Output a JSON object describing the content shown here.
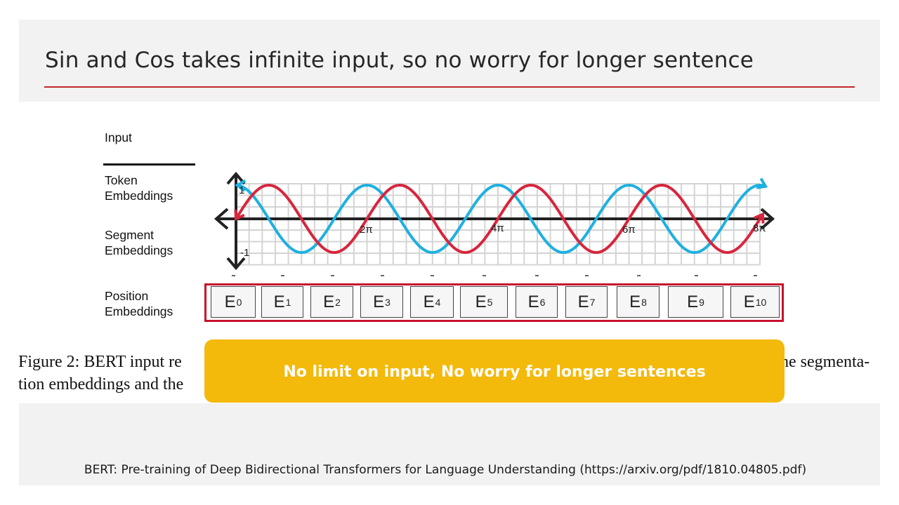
{
  "slide": {
    "title": "Sin and Cos takes infinite input, so no worry for longer sentence"
  },
  "figure": {
    "row_labels": {
      "input": "Input",
      "token_1": "Token",
      "token_2": "Embeddings",
      "segment_1": "Segment",
      "segment_2": "Embeddings",
      "position_1": "Position",
      "position_2": "Embeddings"
    },
    "axis_labels": {
      "y_top": "1",
      "y_bottom": "-1",
      "x_2pi": "2π",
      "x_4pi": "4π",
      "x_6pi": "6π",
      "x_8pi": "8π"
    },
    "position_embeddings": [
      {
        "base": "E",
        "index": "0"
      },
      {
        "base": "E",
        "index": "1"
      },
      {
        "base": "E",
        "index": "2"
      },
      {
        "base": "E",
        "index": "3"
      },
      {
        "base": "E",
        "index": "4"
      },
      {
        "base": "E",
        "index": "5"
      },
      {
        "base": "E",
        "index": "6"
      },
      {
        "base": "E",
        "index": "7"
      },
      {
        "base": "E",
        "index": "8"
      },
      {
        "base": "E",
        "index": "9"
      },
      {
        "base": "E",
        "index": "10"
      }
    ],
    "curve_colors": {
      "sin": "#d7263d",
      "cos": "#1fb0e0"
    },
    "box_border_color": "#c8102e"
  },
  "caption": {
    "line1_left": "Figure 2: BERT input re",
    "line1_right": "he segmenta-",
    "line2_left": "tion embeddings and the"
  },
  "callout": {
    "text": "No limit on input, No worry for longer sentences",
    "color": "#f3b90b"
  },
  "citation": {
    "text": "BERT: Pre-training of Deep Bidirectional Transformers for Language Understanding (https://arxiv.org/pdf/1810.04805.pdf)"
  }
}
